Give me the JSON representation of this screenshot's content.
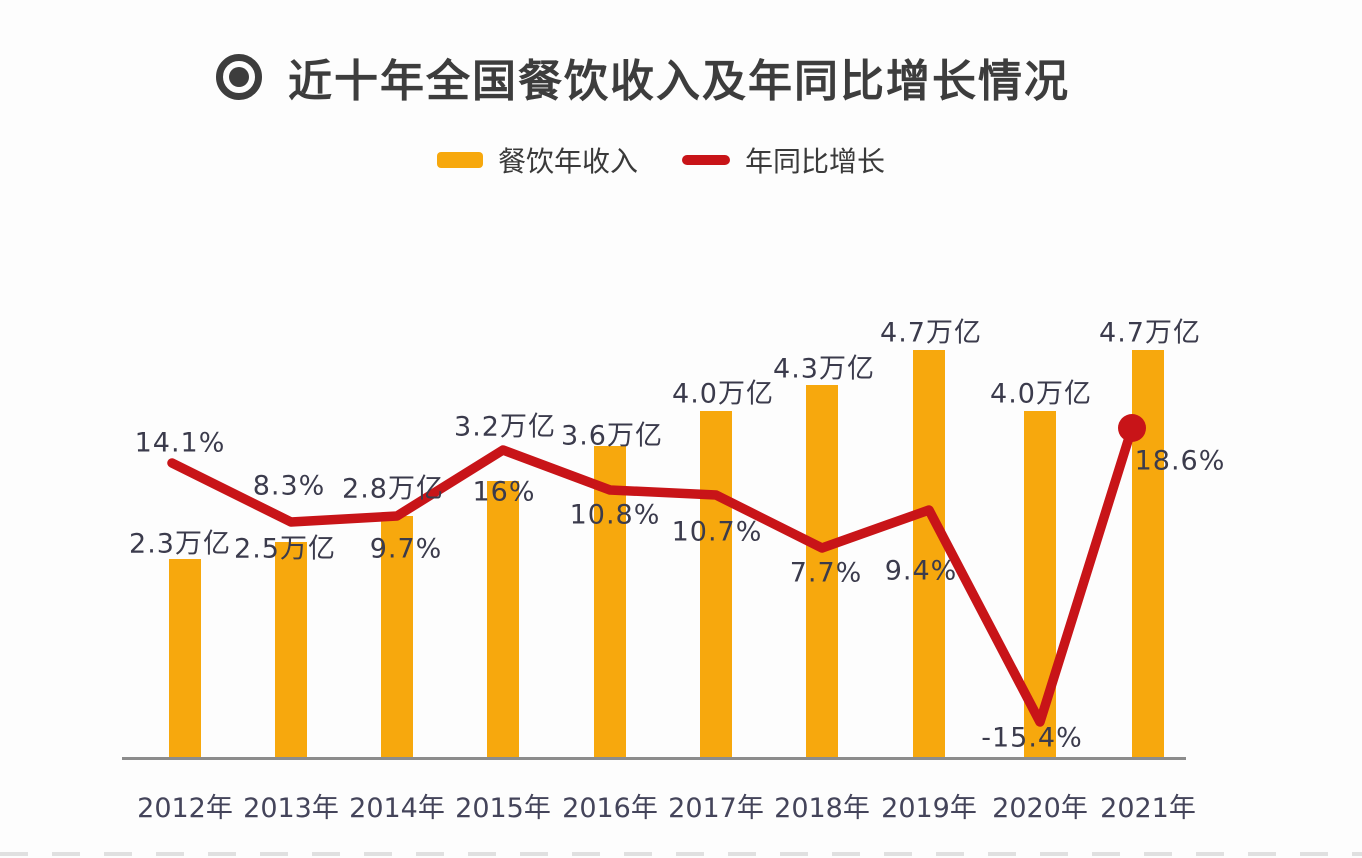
{
  "header": {
    "title": "近十年全国餐饮收入及年同比增长情况",
    "icon": "bullseye-icon"
  },
  "legend": {
    "items": [
      {
        "label": "餐饮年收入",
        "swatch": "bar",
        "color": "#F7A80D"
      },
      {
        "label": "年同比增长",
        "swatch": "line",
        "color": "#C81418"
      }
    ]
  },
  "chart_data": {
    "type": "bar+line",
    "title": "近十年全国餐饮收入及年同比增长情况",
    "categories": [
      "2012年",
      "2013年",
      "2014年",
      "2015年",
      "2016年",
      "2017年",
      "2018年",
      "2019年",
      "2020年",
      "2021年"
    ],
    "series": [
      {
        "name": "餐饮年收入",
        "type": "bar",
        "unit": "万亿",
        "values": [
          2.3,
          2.5,
          2.8,
          3.2,
          3.6,
          4.0,
          4.3,
          4.7,
          4.0,
          4.7
        ],
        "data_labels": [
          "2.3万亿",
          "2.5万亿",
          "2.8万亿",
          "3.2万亿",
          "3.6万亿",
          "4.0万亿",
          "4.3万亿",
          "4.7万亿",
          "4.0万亿",
          "4.7万亿"
        ],
        "color": "#F7A80D"
      },
      {
        "name": "年同比增长",
        "type": "line",
        "unit": "%",
        "values": [
          14.1,
          8.3,
          9.7,
          16,
          10.8,
          10.7,
          7.7,
          9.4,
          -15.4,
          18.6
        ],
        "data_labels": [
          "14.1%",
          "8.3%",
          "9.7%",
          "16%",
          "10.8%",
          "10.7%",
          "7.7%",
          "9.4%",
          "-15.4%",
          "18.6%"
        ],
        "color": "#C81418",
        "end_marker": "dot"
      }
    ],
    "xlabel": "",
    "ylabel": "",
    "bar_axis_range": [
      0,
      5.2
    ],
    "line_axis_range": [
      -18,
      22
    ],
    "grid": false,
    "legend_position": "top",
    "colors": {
      "bar": "#F7A80D",
      "line": "#C81418",
      "label_text": "#3B3B4C",
      "title_text": "#3D3D3D",
      "axis": "#8C8C8C"
    }
  }
}
